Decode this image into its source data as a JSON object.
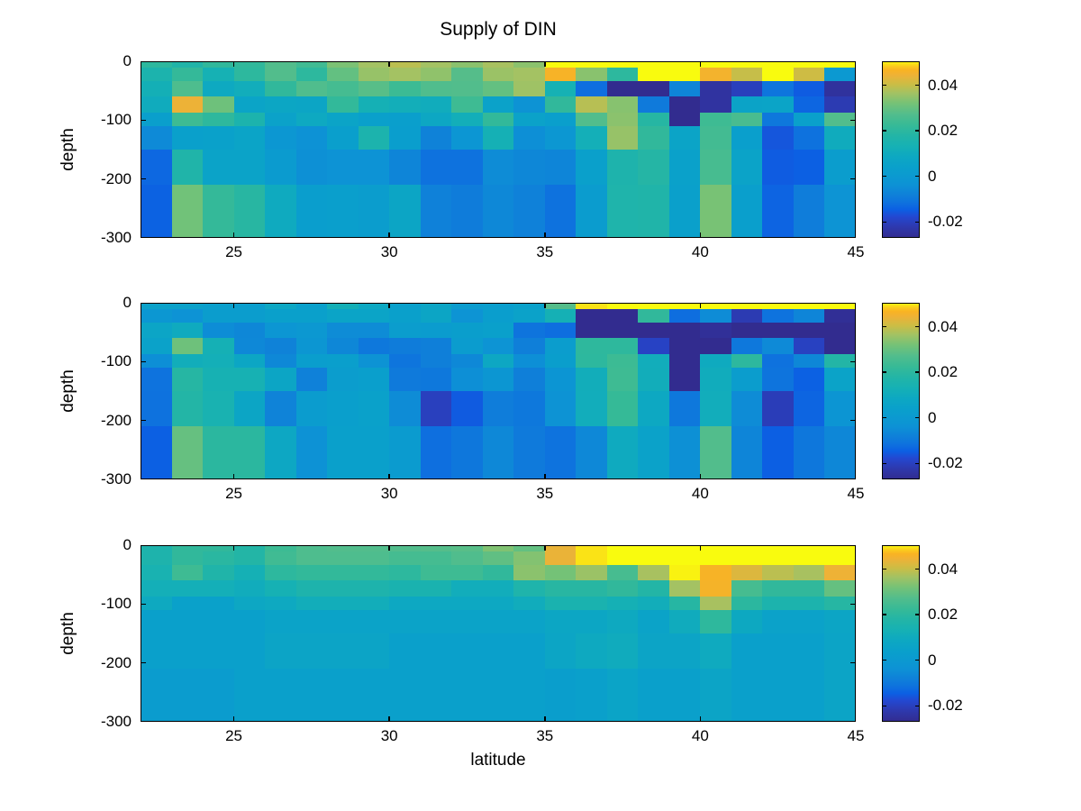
{
  "figure": {
    "title": "Supply of DIN",
    "xlabel": "latitude",
    "ylabel": "depth"
  },
  "axes": {
    "xlim": [
      22,
      45
    ],
    "ylim": [
      0,
      -300
    ],
    "x_ticks": [
      25,
      30,
      35,
      40,
      45
    ],
    "y_ticks": [
      0,
      -100,
      -200,
      -300
    ],
    "lat_edges": [
      22,
      23,
      24,
      25,
      26,
      27,
      28,
      29,
      30,
      31,
      32,
      33,
      34,
      35,
      36,
      37,
      38,
      39,
      40,
      41,
      42,
      43,
      44,
      45
    ],
    "depth_edges_m": [
      0,
      -10,
      -33,
      -59,
      -87,
      -110,
      -150,
      -210,
      -300
    ]
  },
  "colorbar": {
    "vmin": -0.027,
    "vmax": 0.0505,
    "ticks": [
      0.04,
      0.02,
      0,
      -0.02
    ]
  },
  "colormap": {
    "name": "parula",
    "stops": [
      [
        0.0,
        50,
        44,
        143
      ],
      [
        0.06,
        46,
        56,
        172
      ],
      [
        0.12,
        35,
        72,
        209
      ],
      [
        0.16,
        12,
        95,
        227
      ],
      [
        0.2,
        14,
        114,
        222
      ],
      [
        0.24,
        15,
        127,
        217
      ],
      [
        0.3,
        13,
        146,
        213
      ],
      [
        0.36,
        11,
        155,
        207
      ],
      [
        0.4,
        10,
        160,
        203
      ],
      [
        0.46,
        13,
        168,
        194
      ],
      [
        0.52,
        22,
        177,
        180
      ],
      [
        0.58,
        35,
        181,
        166
      ],
      [
        0.64,
        55,
        186,
        150
      ],
      [
        0.7,
        82,
        189,
        140
      ],
      [
        0.76,
        116,
        194,
        119
      ],
      [
        0.82,
        163,
        194,
        99
      ],
      [
        0.87,
        203,
        189,
        69
      ],
      [
        0.92,
        237,
        178,
        55
      ],
      [
        0.95,
        249,
        179,
        35
      ],
      [
        0.97,
        251,
        200,
        30
      ],
      [
        1.0,
        249,
        251,
        14
      ]
    ]
  },
  "chart_data": [
    {
      "type": "heatmap",
      "panel": "top",
      "title": "Supply of DIN",
      "xlabel": "latitude",
      "ylabel": "depth",
      "grid": "rows = depth layers (surface to -300 m), cols = latitude 22 to 45",
      "values": [
        [
          0.0203,
          0.0172,
          0.0211,
          0.0211,
          0.0273,
          0.0242,
          0.0327,
          0.0366,
          0.0389,
          0.0366,
          0.0342,
          0.037,
          0.0342,
          0.0505,
          0.0505,
          0.0505,
          0.0505,
          0.0505,
          0.0505,
          0.0505,
          0.0505,
          0.0505,
          0.0505
        ],
        [
          0.0156,
          0.0218,
          0.0133,
          0.0203,
          0.0273,
          0.0203,
          0.0296,
          0.0354,
          0.0366,
          0.0347,
          0.0277,
          0.0358,
          0.0366,
          0.0462,
          0.034,
          0.0203,
          0.0505,
          0.0505,
          0.0455,
          0.0399,
          0.0505,
          0.0408,
          -0.0003
        ],
        [
          0.0125,
          0.0265,
          0.009,
          0.011,
          0.0211,
          0.0269,
          0.025,
          0.0281,
          0.0234,
          0.0269,
          0.0273,
          0.0296,
          0.0362,
          0.0133,
          -0.0122,
          -0.027,
          -0.027,
          -0.0069,
          -0.0243,
          -0.0203,
          -0.0107,
          -0.015,
          -0.0247
        ],
        [
          0.0102,
          0.0443,
          0.0311,
          0.0063,
          0.0075,
          0.0071,
          0.0214,
          0.0129,
          0.0117,
          0.0106,
          0.0238,
          0.0051,
          -0.003,
          0.0211,
          0.0385,
          0.0338,
          -0.0096,
          -0.027,
          -0.0243,
          0.0059,
          0.0063,
          -0.0134,
          -0.0216
        ],
        [
          0.0032,
          0.0238,
          0.0206,
          0.0156,
          0.0051,
          0.009,
          0.0063,
          0.004,
          0.0036,
          0.0079,
          0.0117,
          0.0214,
          0.0051,
          0.0036,
          0.0273,
          0.0342,
          0.0187,
          -0.027,
          0.0238,
          0.0257,
          -0.01,
          0.004,
          0.0273
        ],
        [
          -0.0057,
          0.004,
          0.0044,
          0.0063,
          -0.0011,
          -0.0038,
          0.0036,
          0.0156,
          0.0028,
          -0.0076,
          -0.0019,
          0.0129,
          -0.0046,
          -0.0011,
          0.0121,
          0.0354,
          0.0211,
          0.0063,
          0.0246,
          0.0036,
          -0.0158,
          -0.0115,
          0.0102
        ],
        [
          -0.0131,
          0.0168,
          0.0055,
          0.0055,
          0.0009,
          -0.0042,
          -0.0034,
          -0.0034,
          -0.0069,
          -0.0115,
          -0.0115,
          -0.0053,
          -0.0065,
          -0.0069,
          0.004,
          0.016,
          0.0183,
          0.0044,
          0.0254,
          0.0055,
          -0.015,
          -0.0144,
          0.0021
        ],
        [
          -0.0141,
          0.0315,
          0.0218,
          0.0191,
          0.0098,
          0.0028,
          0.0036,
          0.0021,
          0.0071,
          -0.008,
          -0.0092,
          -0.0061,
          -0.008,
          -0.0115,
          0.0017,
          0.0164,
          0.0168,
          0.004,
          0.0323,
          0.0036,
          -0.0138,
          -0.0088,
          -0.0026
        ]
      ]
    },
    {
      "type": "heatmap",
      "panel": "middle",
      "xlabel": "latitude",
      "ylabel": "depth",
      "grid": "rows = depth layers (surface to -300 m), cols = latitude 22 to 45",
      "values": [
        [
          0.0048,
          0.0048,
          0.0032,
          0.0028,
          0.0083,
          0.004,
          0.0125,
          0.0087,
          0.004,
          0.0071,
          0.0017,
          0.0025,
          0.0044,
          0.0277,
          0.0494,
          0.0505,
          0.0505,
          0.0505,
          0.0505,
          0.0505,
          0.0505,
          0.0505,
          0.0505
        ],
        [
          -0.0011,
          -0.0034,
          0.0021,
          0.0021,
          0.004,
          0.004,
          0.0063,
          0.0063,
          0.004,
          0.0071,
          -0.0026,
          0.0025,
          0.0051,
          0.0129,
          -0.027,
          -0.027,
          0.0211,
          -0.0122,
          -0.0053,
          -0.0216,
          -0.0113,
          -0.0069,
          -0.0259
        ],
        [
          0.0067,
          0.0098,
          -0.0049,
          -0.0065,
          -0.0019,
          -0.0007,
          -0.0053,
          -0.0053,
          0.0021,
          0.0017,
          0.0029,
          0.004,
          -0.011,
          -0.0122,
          -0.027,
          -0.027,
          -0.027,
          -0.027,
          -0.0255,
          -0.027,
          -0.027,
          -0.027,
          -0.027
        ],
        [
          0.0051,
          0.0311,
          0.0129,
          -0.0061,
          -0.0076,
          -0.0015,
          -0.0065,
          -0.01,
          -0.0092,
          -0.0084,
          0.0017,
          -0.0026,
          -0.0084,
          0.0021,
          0.0206,
          0.0206,
          -0.0193,
          -0.027,
          -0.027,
          -0.01,
          -0.0057,
          -0.0197,
          -0.027
        ],
        [
          -0.0046,
          0.0113,
          0.0121,
          0.0075,
          -0.0061,
          0.0025,
          0.0036,
          -0.003,
          -0.0107,
          -0.0084,
          -0.0061,
          0.0079,
          -0.0046,
          0.0029,
          0.0203,
          0.0234,
          0.011,
          -0.027,
          0.0098,
          0.0203,
          -0.0115,
          -0.0065,
          0.0179
        ],
        [
          -0.0113,
          0.0187,
          0.0137,
          0.0137,
          0.0071,
          -0.008,
          0.0021,
          0.0033,
          -0.0096,
          -0.01,
          -0.0046,
          -0.0015,
          -0.0084,
          -0.0023,
          0.0113,
          0.0238,
          0.0113,
          -0.027,
          0.0106,
          0.0021,
          -0.011,
          -0.0143,
          0.0055
        ],
        [
          -0.0115,
          0.0179,
          0.0144,
          0.0071,
          -0.0073,
          0.0017,
          0.0032,
          0.0044,
          -0.0053,
          -0.0201,
          -0.0152,
          -0.0088,
          -0.01,
          -0.003,
          0.011,
          0.0222,
          0.0087,
          -0.01,
          0.011,
          -0.0053,
          -0.0208,
          -0.0136,
          -0.0023
        ],
        [
          -0.0145,
          0.03,
          0.0199,
          0.0199,
          0.0083,
          -0.0038,
          0.004,
          0.004,
          0.0009,
          -0.012,
          -0.0104,
          -0.0061,
          -0.0096,
          -0.0113,
          -0.0061,
          0.0098,
          0.0051,
          -0.0042,
          0.0273,
          -0.0069,
          -0.0146,
          -0.0104,
          -0.0065
        ]
      ]
    },
    {
      "type": "heatmap",
      "panel": "bottom",
      "xlabel": "latitude",
      "ylabel": "depth",
      "grid": "rows = depth layers (surface to -300 m), cols = latitude 22 to 45",
      "values": [
        [
          0.016,
          0.0211,
          0.0211,
          0.0179,
          0.0234,
          0.0265,
          0.0273,
          0.0273,
          0.0273,
          0.0277,
          0.0281,
          0.0331,
          0.0296,
          0.044,
          0.0494,
          0.0505,
          0.0505,
          0.0505,
          0.0505,
          0.0505,
          0.0505,
          0.0505,
          0.0505
        ],
        [
          0.016,
          0.0211,
          0.0195,
          0.0179,
          0.0242,
          0.0265,
          0.0265,
          0.0265,
          0.025,
          0.025,
          0.0269,
          0.0292,
          0.0334,
          0.044,
          0.0494,
          0.0505,
          0.0505,
          0.0505,
          0.0505,
          0.0505,
          0.0505,
          0.0505,
          0.0505
        ],
        [
          0.0144,
          0.0238,
          0.0168,
          0.0129,
          0.0203,
          0.0214,
          0.0214,
          0.0214,
          0.0203,
          0.0238,
          0.0238,
          0.0211,
          0.0342,
          0.0319,
          0.0358,
          0.0254,
          0.037,
          0.0501,
          0.0463,
          0.0424,
          0.0389,
          0.037,
          0.0444
        ],
        [
          0.0121,
          0.0121,
          0.0121,
          0.0106,
          0.0133,
          0.016,
          0.016,
          0.016,
          0.0148,
          0.0148,
          0.011,
          0.011,
          0.0164,
          0.0191,
          0.0191,
          0.0211,
          0.0179,
          0.0366,
          0.0459,
          0.0252,
          0.0212,
          0.0212,
          0.0298
        ],
        [
          0.0094,
          0.0046,
          0.0046,
          0.0083,
          0.009,
          0.0113,
          0.0113,
          0.0113,
          0.0087,
          0.0087,
          0.0087,
          0.0087,
          0.0108,
          0.0148,
          0.0148,
          0.0129,
          0.0113,
          0.0187,
          0.037,
          0.0199,
          0.0156,
          0.0156,
          0.0187
        ],
        [
          0.004,
          0.004,
          0.004,
          0.004,
          0.0055,
          0.0055,
          0.0055,
          0.0055,
          0.0055,
          0.0055,
          0.0055,
          0.0055,
          0.0055,
          0.0075,
          0.0075,
          0.0094,
          0.0055,
          0.0102,
          0.0206,
          0.0089,
          0.005,
          0.005,
          0.0071
        ],
        [
          0.004,
          0.004,
          0.004,
          0.004,
          0.0066,
          0.0066,
          0.0066,
          0.0066,
          0.004,
          0.004,
          0.004,
          0.004,
          0.004,
          0.0071,
          0.0094,
          0.0102,
          0.0066,
          0.0066,
          0.0098,
          0.004,
          0.004,
          0.004,
          0.0066
        ],
        [
          0.0017,
          0.0017,
          0.0017,
          0.004,
          0.004,
          0.004,
          0.004,
          0.004,
          0.004,
          0.004,
          0.004,
          0.004,
          0.004,
          0.003,
          0.004,
          0.0062,
          0.004,
          0.004,
          0.0066,
          0.004,
          0.004,
          0.004,
          0.0066
        ]
      ]
    }
  ]
}
